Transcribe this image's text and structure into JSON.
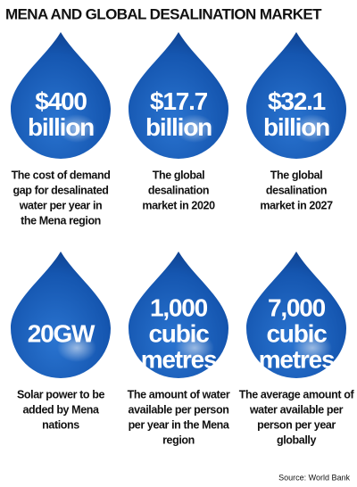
{
  "header": {
    "title": "MENA AND GLOBAL DESALINATION MARKET"
  },
  "items": [
    {
      "value_lines": [
        "$400",
        "billion"
      ],
      "caption_lines": [
        "The cost of demand",
        "gap for desalinated",
        "water per year in",
        "the Mena region"
      ]
    },
    {
      "value_lines": [
        "$17.7",
        "billion"
      ],
      "caption_lines": [
        "The global",
        "desalination",
        "market in 2020"
      ]
    },
    {
      "value_lines": [
        "$32.1",
        "billion"
      ],
      "caption_lines": [
        "The global",
        "desalination",
        "market in 2027"
      ]
    },
    {
      "value_lines": [
        "20GW"
      ],
      "caption_lines": [
        "Solar power to be",
        "added by Mena",
        "nations"
      ]
    },
    {
      "value_lines": [
        "1,000",
        "cubic",
        "metres"
      ],
      "caption_lines": [
        "The amount of water",
        "available per person",
        "per year in the Mena",
        "region"
      ]
    },
    {
      "value_lines": [
        "7,000",
        "cubic",
        "metres"
      ],
      "caption_lines": [
        "The average amount of",
        "water available per",
        "person per year",
        "globally"
      ]
    }
  ],
  "footer": {
    "source": "Source: World Bank"
  }
}
